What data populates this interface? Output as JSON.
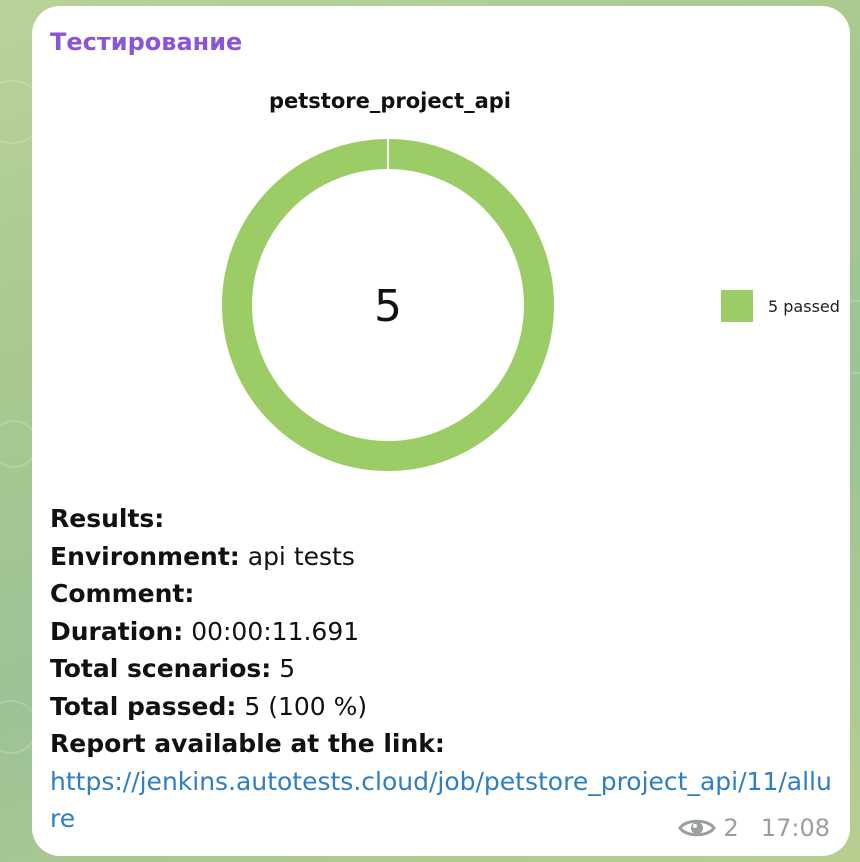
{
  "message": {
    "channel_name": "Тестирование",
    "lines": [
      {
        "label": "Results:",
        "value": ""
      },
      {
        "label": "Environment:",
        "value": " api tests"
      },
      {
        "label": "Comment:",
        "value": ""
      },
      {
        "label": "Duration:",
        "value": " 00:00:11.691"
      },
      {
        "label": "Total scenarios:",
        "value": " 5"
      },
      {
        "label": "Total passed:",
        "value": " 5 (100 %)"
      },
      {
        "label": "Report available at the link:",
        "value": ""
      }
    ],
    "link": "https://jenkins.autotests.cloud/job/petstore_project_api/11/allure",
    "views": "2",
    "time": "17:08"
  },
  "icons": {
    "views": "eye-icon"
  },
  "colors": {
    "channel_name": "#8a55d6",
    "passed": "#9ccc65",
    "link": "#2e7ec4",
    "meta": "#9aa09a"
  },
  "chart_data": {
    "type": "pie",
    "title": "petstore_project_api",
    "center_label": "5",
    "categories": [
      "passed"
    ],
    "values": [
      5
    ],
    "legend": [
      {
        "label": "5 passed",
        "color": "#9ccc65"
      }
    ],
    "legend_position": "right",
    "donut": true
  }
}
